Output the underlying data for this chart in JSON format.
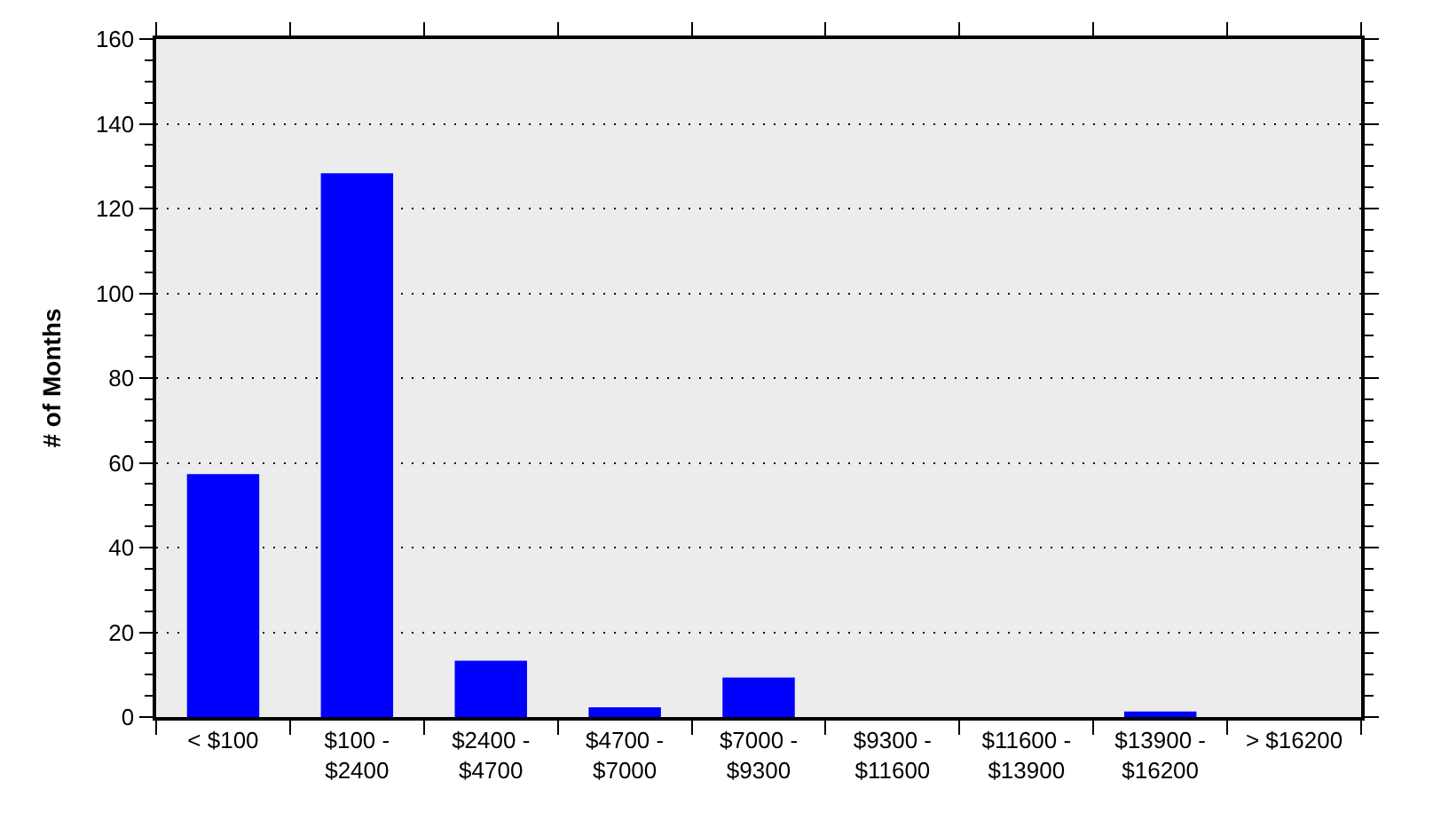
{
  "chart_data": {
    "type": "bar",
    "ylabel": "# of Months",
    "categories": [
      "< $100",
      "$100 -\n$2400",
      "$2400 -\n$4700",
      "$4700 -\n$7000",
      "$7000 -\n$9300",
      "$9300 -\n$11600",
      "$11600 -\n$13900",
      "$13900 -\n$16200",
      "> $16200"
    ],
    "values": [
      57,
      128,
      13,
      2,
      9,
      0,
      0,
      1,
      0
    ],
    "color": "#0000ff",
    "ylim": [
      0,
      160
    ],
    "yticks": [
      0,
      {
        "value": 5,
        "label": null
      },
      {
        "value": 10,
        "label": null
      },
      {
        "value": 15,
        "label": null
      },
      20,
      {
        "value": 25,
        "label": null
      },
      {
        "value": 30,
        "label": null
      },
      {
        "value": 35,
        "label": null
      },
      40,
      {
        "value": 45,
        "label": null
      },
      {
        "value": 50,
        "label": null
      },
      {
        "value": 55,
        "label": null
      },
      60,
      {
        "value": 65,
        "label": null
      },
      {
        "value": 70,
        "label": null
      },
      {
        "value": 75,
        "label": null
      },
      80,
      {
        "value": 85,
        "label": null
      },
      {
        "value": 90,
        "label": null
      },
      {
        "value": 95,
        "label": null
      },
      100,
      {
        "value": 105,
        "label": null
      },
      {
        "value": 110,
        "label": null
      },
      {
        "value": 115,
        "label": null
      },
      120,
      {
        "value": 125,
        "label": null
      },
      {
        "value": 130,
        "label": null
      },
      {
        "value": 135,
        "label": null
      },
      140,
      {
        "value": 145,
        "label": null
      },
      {
        "value": 150,
        "label": null
      },
      {
        "value": 155,
        "label": null
      },
      160
    ],
    "grid": "y"
  }
}
